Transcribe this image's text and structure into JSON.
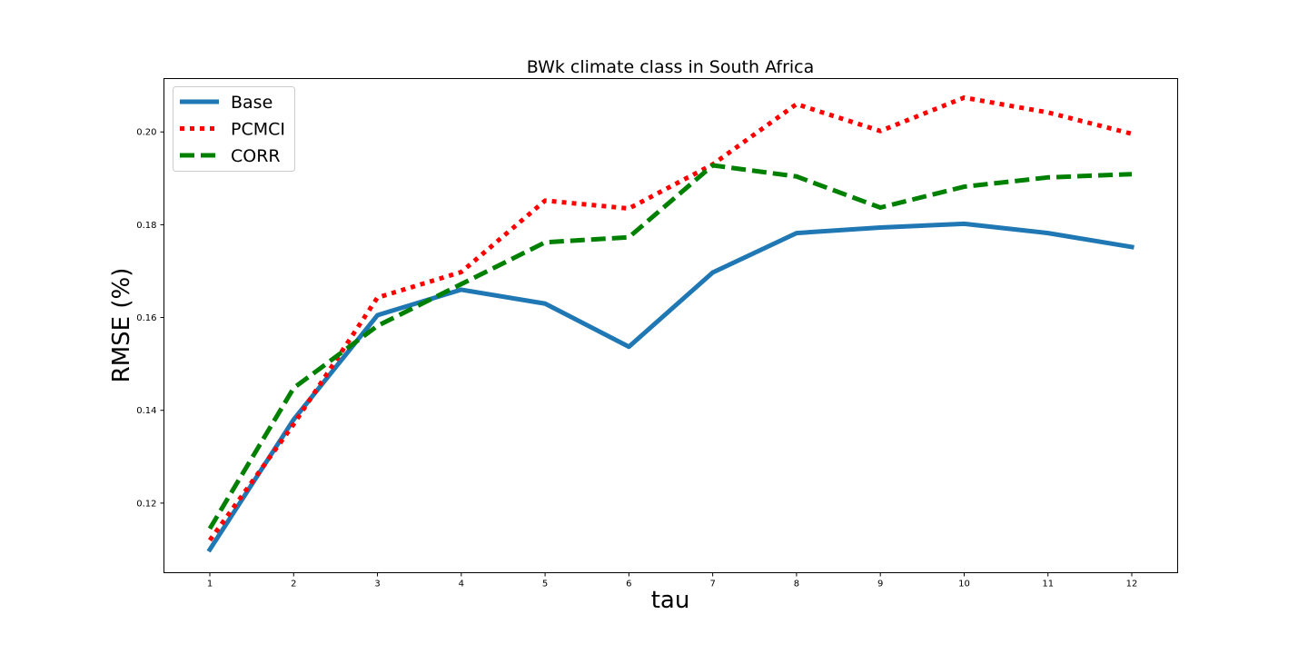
{
  "chart_data": {
    "type": "line",
    "title": "BWk climate class in South Africa",
    "xlabel": "tau",
    "ylabel": "RMSE (%)",
    "x": [
      1,
      2,
      3,
      4,
      5,
      6,
      7,
      8,
      9,
      10,
      11,
      12
    ],
    "ylim": [
      0.105,
      0.2115
    ],
    "y_ticks": [
      "0.12",
      "0.14",
      "0.16",
      "0.18",
      "0.20"
    ],
    "x_ticks": [
      "1",
      "2",
      "3",
      "4",
      "5",
      "6",
      "7",
      "8",
      "9",
      "10",
      "11",
      "12"
    ],
    "grid": false,
    "legend_position": "top-left",
    "series": [
      {
        "name": "Base",
        "color": "#1f77b4",
        "style": "solid",
        "values": [
          0.11,
          0.138,
          0.1605,
          0.166,
          0.163,
          0.1537,
          0.1697,
          0.1782,
          0.1794,
          0.1802,
          0.1782,
          0.1752
        ]
      },
      {
        "name": "PCMCI",
        "color": "#ff0000",
        "style": "dotted",
        "values": [
          0.112,
          0.137,
          0.1643,
          0.1698,
          0.1852,
          0.1835,
          0.193,
          0.206,
          0.2002,
          0.2074,
          0.2042,
          0.1996
        ]
      },
      {
        "name": "CORR",
        "color": "#008000",
        "style": "dashed",
        "values": [
          0.1145,
          0.1448,
          0.1582,
          0.1672,
          0.1762,
          0.1773,
          0.1928,
          0.1904,
          0.1837,
          0.1882,
          0.1902,
          0.1909
        ]
      }
    ]
  }
}
